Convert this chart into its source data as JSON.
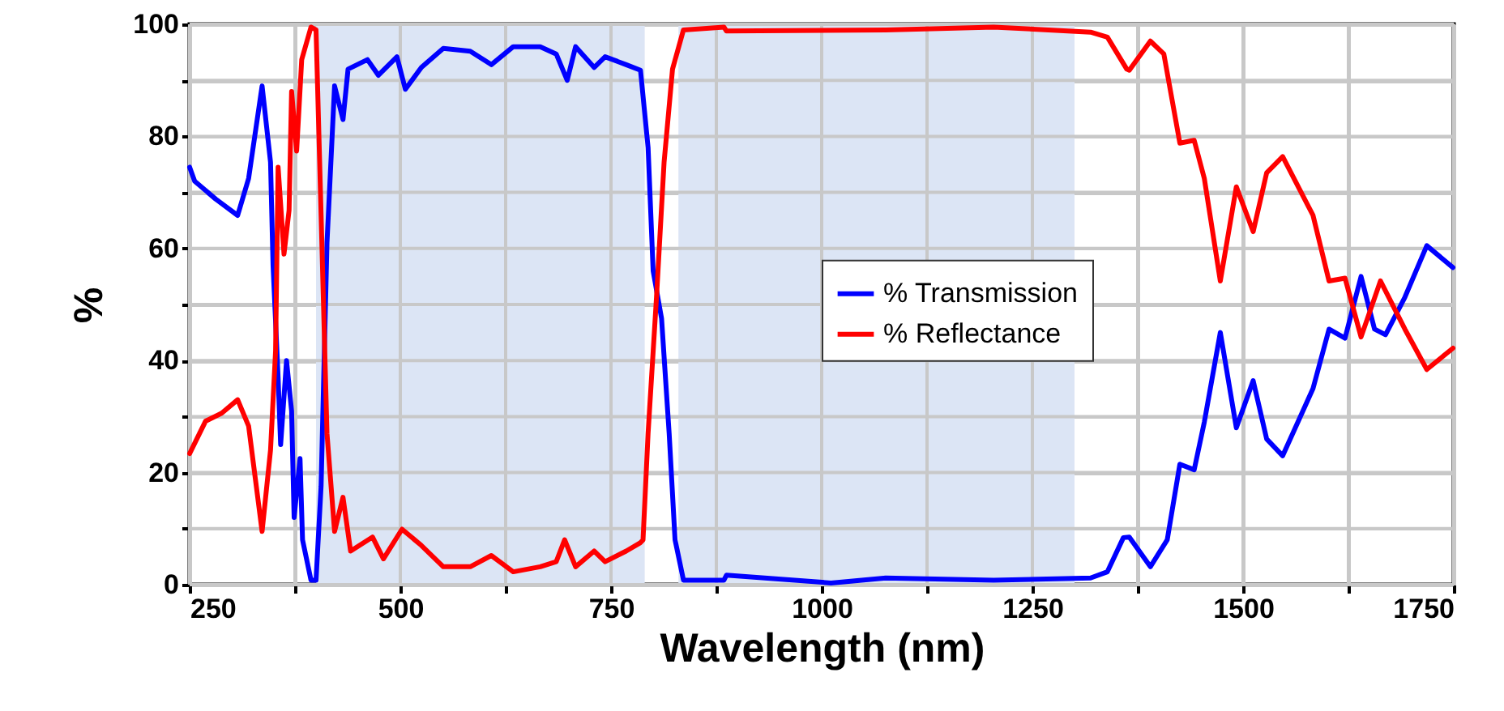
{
  "chart_data": {
    "type": "line",
    "xlabel": "Wavelength (nm)",
    "ylabel": "%",
    "xlim": [
      250,
      1750
    ],
    "ylim": [
      0,
      100
    ],
    "xticks": [
      250,
      {
        "value": 375,
        "label": null
      },
      500,
      {
        "value": 625,
        "label": null
      },
      750,
      {
        "value": 875,
        "label": null
      },
      1000,
      {
        "value": 1125,
        "label": null
      },
      1250,
      {
        "value": 1375,
        "label": null
      },
      1500,
      {
        "value": 1625,
        "label": null
      },
      1750
    ],
    "yticks": [
      0,
      {
        "value": 10,
        "label": null
      },
      20,
      {
        "value": 30,
        "label": null
      },
      40,
      {
        "value": 50,
        "label": null
      },
      60,
      {
        "value": 70,
        "label": null
      },
      80,
      {
        "value": 90,
        "label": null
      },
      100
    ],
    "grid": true,
    "legend": "right",
    "line_style": "solid",
    "bands": [
      {
        "axis": "x",
        "from": 400,
        "to": 790,
        "color": "#dce5f5"
      },
      {
        "axis": "x",
        "from": 830,
        "to": 1300,
        "color": "#dce5f5"
      }
    ],
    "series": [
      {
        "name": "% Transmission",
        "color": "#0000ff",
        "x": [
          250,
          256,
          281,
          307,
          320,
          336,
          346,
          349,
          355,
          358,
          365,
          371,
          374,
          381,
          384,
          394,
          400,
          406,
          413,
          422,
          432,
          438,
          461,
          474,
          496,
          506,
          525,
          551,
          583,
          608,
          634,
          666,
          685,
          698,
          708,
          730,
          743,
          768,
          785,
          794,
          800,
          810,
          819,
          826,
          836,
          884,
          887,
          1011,
          1076,
          1204,
          1319,
          1339,
          1358,
          1365,
          1390,
          1410,
          1425,
          1442,
          1454,
          1473,
          1492,
          1512,
          1528,
          1547,
          1583,
          1602,
          1621,
          1640,
          1656,
          1669,
          1692,
          1718,
          1749
        ],
        "values": [
          74.5,
          72,
          68.8,
          65.9,
          72.5,
          89,
          75.4,
          57,
          37,
          25,
          40,
          31,
          12,
          22.5,
          8,
          0.8,
          0.8,
          17.6,
          61,
          89,
          83,
          92,
          93.7,
          90.9,
          94.2,
          88.4,
          92.3,
          95.7,
          95.2,
          92.8,
          96,
          96,
          94.7,
          90,
          96,
          92.3,
          94.2,
          92.8,
          91.8,
          78,
          56,
          47.5,
          27,
          8,
          0.8,
          0.8,
          1.7,
          0.3,
          1.2,
          0.8,
          1.2,
          2.3,
          8.4,
          8.5,
          3.2,
          8,
          21.5,
          20.5,
          29,
          45,
          28,
          36.4,
          26,
          23,
          35,
          45.6,
          44,
          55,
          45.6,
          44.6,
          51.3,
          60.5,
          56.6
        ]
      },
      {
        "name": "% Reflectance",
        "color": "#ff0000",
        "x": [
          250,
          269,
          288,
          307,
          320,
          336,
          346,
          352,
          355,
          362,
          368,
          371,
          377,
          383,
          394,
          400,
          406,
          413,
          422,
          432,
          441,
          467,
          480,
          502,
          525,
          551,
          583,
          608,
          634,
          666,
          685,
          695,
          708,
          730,
          743,
          768,
          785,
          788,
          794,
          804,
          813,
          823,
          836,
          884,
          887,
          1076,
          1204,
          1319,
          1339,
          1362,
          1365,
          1390,
          1406,
          1425,
          1442,
          1454,
          1473,
          1492,
          1512,
          1528,
          1547,
          1583,
          1602,
          1621,
          1640,
          1663,
          1692,
          1718,
          1749
        ],
        "values": [
          23.4,
          29.2,
          30.6,
          33,
          28.3,
          9.5,
          24,
          41.7,
          74.5,
          59,
          66.8,
          88,
          77.4,
          93.7,
          99.5,
          99,
          66,
          27,
          9.5,
          15.6,
          6,
          8.5,
          4.6,
          9.9,
          7,
          3.2,
          3.2,
          5.2,
          2.3,
          3.2,
          4.1,
          8,
          3.2,
          6,
          4.1,
          6,
          7.5,
          8,
          27,
          51.3,
          75.4,
          92,
          99,
          99.5,
          98.8,
          99,
          99.5,
          98.6,
          97.7,
          92,
          91.8,
          97,
          94.7,
          78.8,
          79.3,
          72.5,
          54.2,
          71,
          63,
          73.5,
          76.4,
          65.9,
          54.2,
          54.7,
          44.2,
          54.2,
          45.6,
          38.4,
          42.2
        ]
      }
    ]
  }
}
